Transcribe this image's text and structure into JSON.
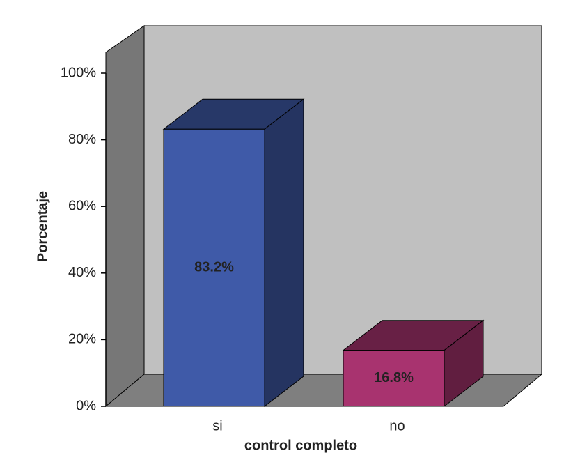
{
  "chart_data": {
    "type": "bar3d",
    "y_label": "Porcentaje",
    "x_label": "control completo",
    "categories": [
      "si",
      "no"
    ],
    "values": [
      83.2,
      16.8
    ],
    "value_labels": [
      "83.2%",
      "16.8%"
    ],
    "colors": [
      "#3f5aa8",
      "#a8336f"
    ],
    "ylim": [
      0,
      100
    ],
    "yticks": [
      {
        "value": 0,
        "label": "0%"
      },
      {
        "value": 20,
        "label": "20%"
      },
      {
        "value": 40,
        "label": "40%"
      },
      {
        "value": 60,
        "label": "60%"
      },
      {
        "value": 80,
        "label": "80%"
      },
      {
        "value": 100,
        "label": "100%"
      }
    ]
  }
}
